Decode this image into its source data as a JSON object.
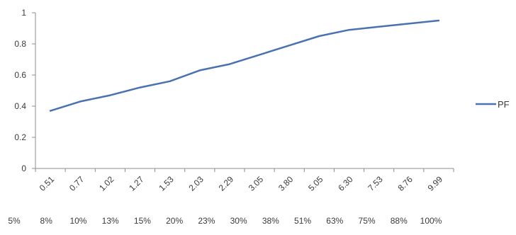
{
  "chart_data": {
    "type": "line",
    "categories": [
      "0.51",
      "0.77",
      "1.02",
      "1.27",
      "1.53",
      "2.03",
      "2.29",
      "3.05",
      "3.80",
      "5.05",
      "6.30",
      "7.53",
      "8.76",
      "9.99"
    ],
    "secondary_categories": [
      "5%",
      "8%",
      "10%",
      "13%",
      "15%",
      "20%",
      "23%",
      "30%",
      "38%",
      "51%",
      "63%",
      "75%",
      "88%",
      "100%"
    ],
    "series": [
      {
        "name": "PF",
        "values": [
          0.37,
          0.43,
          0.47,
          0.52,
          0.56,
          0.63,
          0.67,
          0.73,
          0.79,
          0.85,
          0.89,
          0.91,
          0.93,
          0.95
        ]
      }
    ],
    "ylim": [
      0,
      1
    ],
    "yticks": [
      "0",
      "0.2",
      "0.4",
      "0.6",
      "0.8",
      "1"
    ],
    "title": "",
    "xlabel": "",
    "ylabel": "",
    "legend_position": "right",
    "grid": false,
    "line_color": "#4a72b0"
  }
}
